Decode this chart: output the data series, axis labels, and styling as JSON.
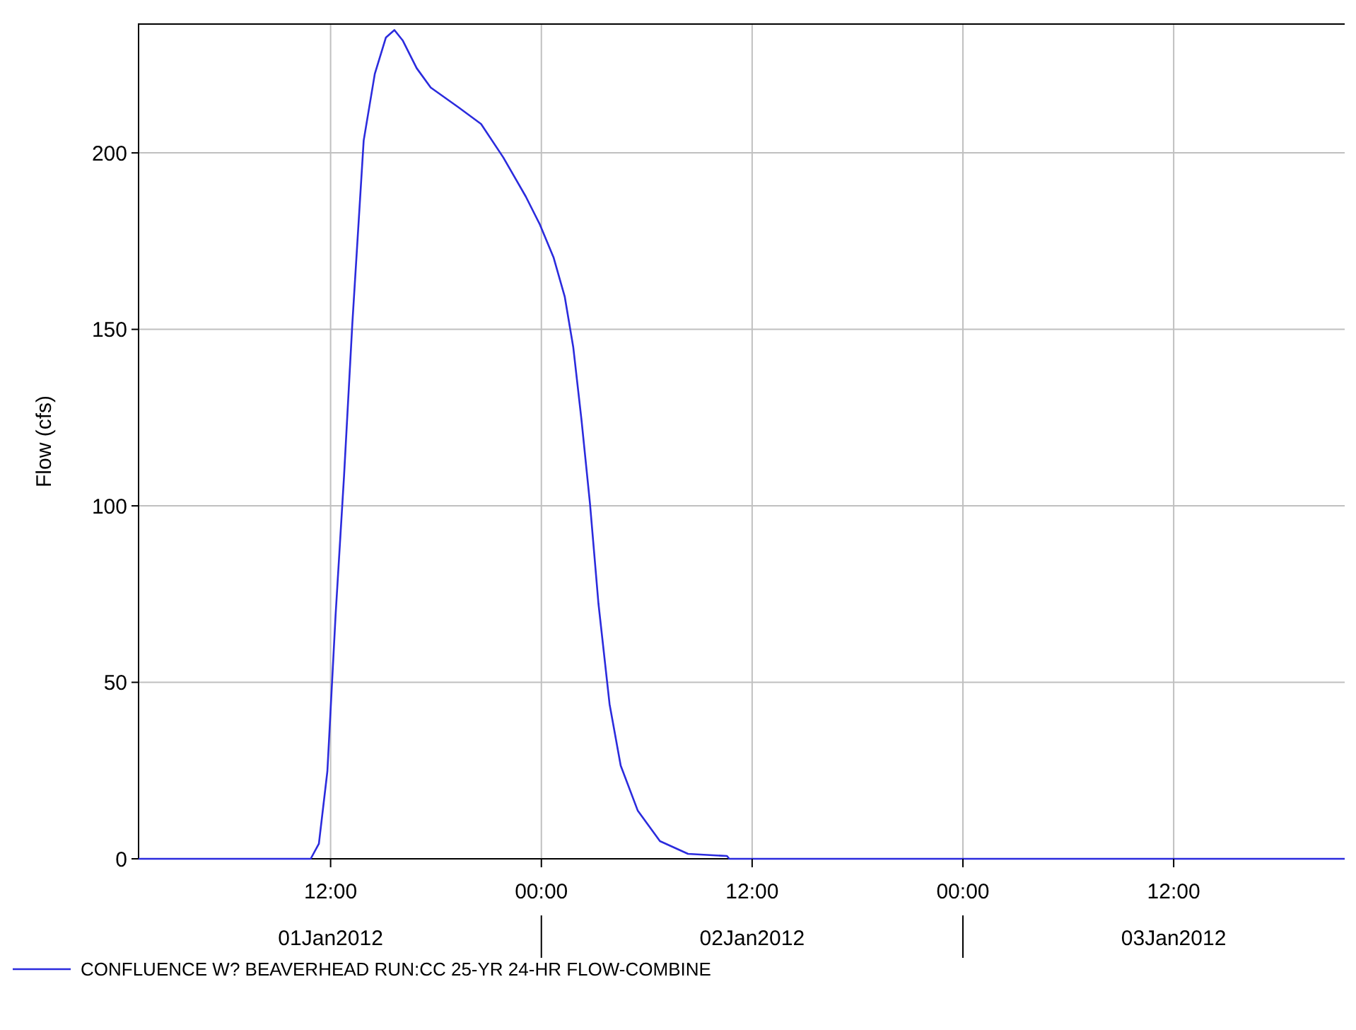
{
  "chart_data": {
    "type": "line",
    "ylabel": "Flow (cfs)",
    "xlim": [
      "2012-01-01T01:04",
      "2012-01-03T22:18"
    ],
    "xticks": [
      {
        "value": "2012-01-01T12:00",
        "label": "12:00\n01Jan2012"
      },
      {
        "value": "2012-01-02T00:00",
        "label": "00:00"
      },
      {
        "value": "2012-01-02T12:00",
        "label": "12:00\n02Jan2012"
      },
      {
        "value": "2012-01-03T00:00",
        "label": "00:00"
      },
      {
        "value": "2012-01-03T12:00",
        "label": "12:00\n03Jan2012"
      }
    ],
    "ylim": [
      0,
      236.5
    ],
    "yticks": [
      0,
      50,
      100,
      150,
      200
    ],
    "grid": true,
    "legend": "bottom",
    "series": [
      {
        "name": "CONFLUENCE W? BEAVERHEAD RUN:CC 25-YR 24-HR FLOW-COMBINE",
        "color": "#2b2bdd",
        "x": [
          "2012-01-01T01:04",
          "2012-01-01T10:52",
          "2012-01-01T11:20",
          "2012-01-01T11:49",
          "2012-01-01T12:17",
          "2012-01-01T12:46",
          "2012-01-01T13:14",
          "2012-01-01T13:53",
          "2012-01-01T14:31",
          "2012-01-01T15:09",
          "2012-01-01T15:38",
          "2012-01-01T16:06",
          "2012-01-01T16:54",
          "2012-01-01T17:42",
          "2012-01-01T19:17",
          "2012-01-01T20:34",
          "2012-01-01T21:50",
          "2012-01-01T23:07",
          "2012-01-01T23:55",
          "2012-01-02T00:42",
          "2012-01-02T01:20",
          "2012-01-02T01:49",
          "2012-01-02T02:17",
          "2012-01-02T02:46",
          "2012-01-02T03:15",
          "2012-01-02T03:53",
          "2012-01-02T04:31",
          "2012-01-02T05:29",
          "2012-01-02T06:45",
          "2012-01-02T08:21",
          "2012-01-02T10:34",
          "2012-01-02T10:42",
          "2012-01-03T22:18"
        ],
        "values": [
          0,
          0,
          4.3,
          24.8,
          69,
          108.6,
          151.3,
          203.5,
          222.4,
          232.7,
          234.8,
          231.9,
          224,
          218.5,
          212.9,
          208.2,
          198.7,
          187.6,
          179.7,
          170.3,
          159.2,
          144.9,
          124.4,
          100.7,
          72.3,
          43.8,
          26.4,
          13.7,
          5,
          1.4,
          0.8,
          0,
          0
        ]
      }
    ]
  }
}
